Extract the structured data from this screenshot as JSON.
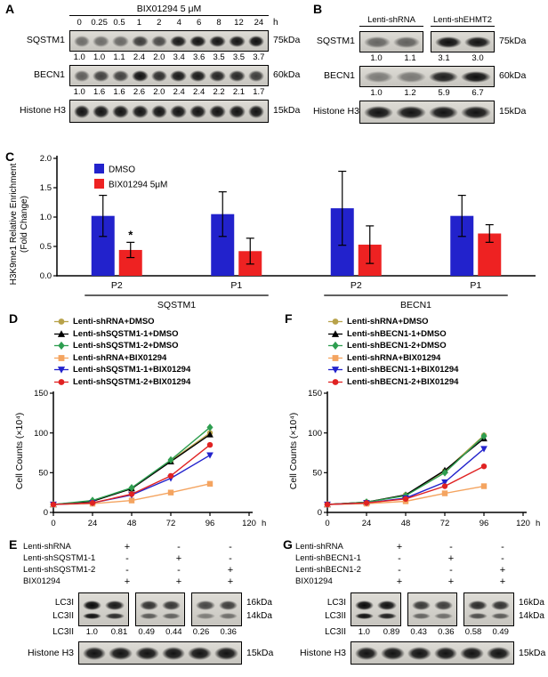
{
  "panelA": {
    "label": "A",
    "title": "BIX01294 5 μM",
    "lanes": [
      "0",
      "0.25",
      "0.5",
      "1",
      "2",
      "4",
      "6",
      "8",
      "12",
      "24"
    ],
    "lane_unit": "h",
    "rows": [
      {
        "protein": "SQSTM1",
        "kda": "75kDa",
        "values": [
          "1.0",
          "1.0",
          "1.1",
          "2.4",
          "2.0",
          "3.4",
          "3.6",
          "3.5",
          "3.5",
          "3.7"
        ]
      },
      {
        "protein": "BECN1",
        "kda": "60kDa",
        "values": [
          "1.0",
          "1.6",
          "1.6",
          "2.6",
          "2.0",
          "2.4",
          "2.4",
          "2.2",
          "2.1",
          "1.7"
        ]
      },
      {
        "protein": "Histone H3",
        "kda": "15kDa",
        "values": null
      }
    ]
  },
  "panelB": {
    "label": "B",
    "groups": [
      "Lenti-shRNA",
      "Lenti-shEHMT2"
    ],
    "rows": [
      {
        "protein": "SQSTM1",
        "kda": "75kDa",
        "values": [
          "1.0",
          "1.1",
          "3.1",
          "3.0"
        ],
        "boxed": true
      },
      {
        "protein": "BECN1",
        "kda": "60kDa",
        "values": [
          "1.0",
          "1.2",
          "5.9",
          "6.7"
        ],
        "boxed": false
      },
      {
        "protein": "Histone H3",
        "kda": "15kDa",
        "values": null,
        "boxed": false
      }
    ]
  },
  "panelC": {
    "label": "C"
  },
  "panelD": {
    "label": "D"
  },
  "panelF": {
    "label": "F"
  },
  "panelE": {
    "label": "E",
    "conditions": [
      {
        "name": "Lenti-shRNA",
        "symbols": [
          "+",
          "-",
          "-"
        ]
      },
      {
        "name": "Lenti-shSQSTM1-1",
        "symbols": [
          "-",
          "+",
          "-"
        ]
      },
      {
        "name": "Lenti-shSQSTM1-2",
        "symbols": [
          "-",
          "-",
          "+"
        ]
      },
      {
        "name": "BIX01294",
        "symbols": [
          "+",
          "+",
          "+"
        ]
      }
    ],
    "lc3": {
      "band_labels": [
        "LC3I",
        "LC3II"
      ],
      "kda": [
        "16kDa",
        "14kDa"
      ]
    },
    "quant": {
      "label": "LC3II",
      "values": [
        "1.0",
        "0.81",
        "0.49",
        "0.44",
        "0.26",
        "0.36"
      ]
    },
    "histone": {
      "protein": "Histone H3",
      "kda": "15kDa"
    }
  },
  "panelG": {
    "label": "G",
    "conditions": [
      {
        "name": "Lenti-shRNA",
        "symbols": [
          "+",
          "-",
          "-"
        ]
      },
      {
        "name": "Lenti-shBECN1-1",
        "symbols": [
          "-",
          "+",
          "-"
        ]
      },
      {
        "name": "Lenti-shBECN1-2",
        "symbols": [
          "-",
          "-",
          "+"
        ]
      },
      {
        "name": "BIX01294",
        "symbols": [
          "+",
          "+",
          "+"
        ]
      }
    ],
    "lc3": {
      "band_labels": [
        "LC3I",
        "LC3II"
      ],
      "kda": [
        "16kDa",
        "14kDa"
      ]
    },
    "quant": {
      "label": "LC3II",
      "values": [
        "1.0",
        "0.89",
        "0.43",
        "0.36",
        "0.58",
        "0.49"
      ]
    },
    "histone": {
      "protein": "Histone H3",
      "kda": "15kDa"
    }
  },
  "chart_data": [
    {
      "id": "C",
      "type": "bar",
      "ylabel_lines": [
        "H3K9me1 Relative Enrichment",
        "(Fold Change)"
      ],
      "ylim": [
        0,
        2.0
      ],
      "yticks": [
        "0.0",
        "0.5",
        "1.0",
        "1.5",
        "2.0"
      ],
      "categories": [
        "P2",
        "P1",
        "P2",
        "P1"
      ],
      "gene_groups": [
        {
          "name": "SQSTM1",
          "span": [
            0,
            1
          ]
        },
        {
          "name": "BECN1",
          "span": [
            2,
            3
          ]
        }
      ],
      "series": [
        {
          "name": "DMSO",
          "color": "#2222cc",
          "values": [
            1.02,
            1.05,
            1.15,
            1.02
          ],
          "errors": [
            0.35,
            0.38,
            0.63,
            0.35
          ]
        },
        {
          "name": "BIX01294 5μM",
          "color": "#ee2222",
          "values": [
            0.44,
            0.42,
            0.53,
            0.72
          ],
          "errors": [
            0.13,
            0.22,
            0.32,
            0.15
          ]
        }
      ],
      "annotations": [
        {
          "text": "*",
          "category_index": 0,
          "series_index": 1
        }
      ],
      "legend_position": "top-left",
      "grid": false
    },
    {
      "id": "D",
      "type": "line",
      "ylabel": "Cell Counts (×10⁴)",
      "x_unit": "h",
      "xlim": [
        0,
        120
      ],
      "ylim": [
        0,
        150
      ],
      "xticks": [
        0,
        24,
        48,
        72,
        96,
        120
      ],
      "yticks": [
        0,
        50,
        100,
        150
      ],
      "x": [
        0,
        24,
        48,
        72,
        96
      ],
      "series": [
        {
          "name": "Lenti-shRNA+DMSO",
          "color": "#b8a24a",
          "marker": "circle",
          "values": [
            10,
            14,
            30,
            65,
            100
          ]
        },
        {
          "name": "Lenti-shSQSTM1-1+DMSO",
          "color": "#000000",
          "marker": "triangle-up",
          "values": [
            10,
            14,
            30,
            64,
            98
          ]
        },
        {
          "name": "Lenti-shSQSTM1-2+DMSO",
          "color": "#2e9e50",
          "marker": "diamond",
          "values": [
            10,
            15,
            31,
            66,
            107
          ]
        },
        {
          "name": "Lenti-shRNA+BIX01294",
          "color": "#f4a460",
          "marker": "square",
          "values": [
            10,
            11,
            15,
            25,
            36
          ]
        },
        {
          "name": "Lenti-shSQSTM1-1+BIX01294",
          "color": "#2222cc",
          "marker": "triangle-down",
          "values": [
            10,
            12,
            22,
            43,
            72
          ]
        },
        {
          "name": "Lenti-shSQSTM1-2+BIX01294",
          "color": "#e02222",
          "marker": "circle",
          "values": [
            10,
            12,
            23,
            46,
            85
          ]
        }
      ],
      "legend_position": "above",
      "grid": false
    },
    {
      "id": "F",
      "type": "line",
      "ylabel": "Cell Counts (×10⁴)",
      "x_unit": "h",
      "xlim": [
        0,
        120
      ],
      "ylim": [
        0,
        150
      ],
      "xticks": [
        0,
        24,
        48,
        72,
        96,
        120
      ],
      "yticks": [
        0,
        50,
        100,
        150
      ],
      "x": [
        0,
        24,
        48,
        72,
        96
      ],
      "series": [
        {
          "name": "Lenti-shRNA+DMSO",
          "color": "#b8a24a",
          "marker": "circle",
          "values": [
            10,
            13,
            22,
            52,
            97
          ]
        },
        {
          "name": "Lenti-shBECN1-1+DMSO",
          "color": "#000000",
          "marker": "triangle-up",
          "values": [
            10,
            13,
            22,
            53,
            93
          ]
        },
        {
          "name": "Lenti-shBECN1-2+DMSO",
          "color": "#2e9e50",
          "marker": "diamond",
          "values": [
            10,
            13,
            21,
            50,
            96
          ]
        },
        {
          "name": "Lenti-shRNA+BIX01294",
          "color": "#f4a460",
          "marker": "square",
          "values": [
            10,
            11,
            14,
            24,
            33
          ]
        },
        {
          "name": "Lenti-shBECN1-1+BIX01294",
          "color": "#2222cc",
          "marker": "triangle-down",
          "values": [
            10,
            12,
            18,
            38,
            80
          ]
        },
        {
          "name": "Lenti-shBECN1-2+BIX01294",
          "color": "#e02222",
          "marker": "circle",
          "values": [
            10,
            12,
            17,
            33,
            58
          ]
        }
      ],
      "legend_position": "above",
      "grid": false
    }
  ]
}
